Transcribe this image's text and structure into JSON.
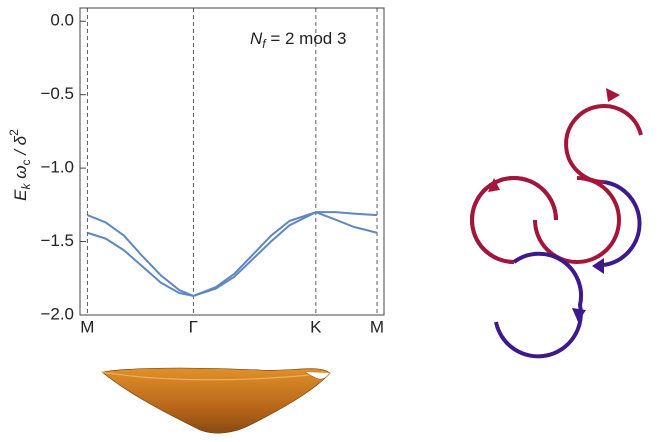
{
  "chart_data": {
    "type": "line",
    "ylabel": [
      "E",
      "k",
      " ω",
      "c",
      " / δ",
      "2"
    ],
    "annotation": [
      "N",
      "f",
      " = 2 mod 3"
    ],
    "x": [
      0,
      0.1,
      0.2,
      0.3,
      0.4,
      0.5,
      0.577,
      0.7,
      0.8,
      0.9,
      1.0,
      1.1,
      1.244,
      1.35,
      1.45,
      1.577
    ],
    "series": [
      {
        "color": "#5e87c3",
        "values": [
          -1.32,
          -1.37,
          -1.46,
          -1.6,
          -1.73,
          -1.83,
          -1.87,
          -1.82,
          -1.74,
          -1.62,
          -1.5,
          -1.39,
          -1.3,
          -1.3,
          -1.31,
          -1.32
        ]
      },
      {
        "color": "#5e87c3",
        "values": [
          -1.44,
          -1.48,
          -1.56,
          -1.67,
          -1.78,
          -1.85,
          -1.87,
          -1.81,
          -1.72,
          -1.59,
          -1.46,
          -1.36,
          -1.3,
          -1.35,
          -1.4,
          -1.44
        ]
      }
    ],
    "xlim": [
      -0.04,
      1.615
    ],
    "ylim": [
      -2.0,
      0.09
    ],
    "xticks": [
      {
        "value": 0,
        "label": "M"
      },
      {
        "value": 0.577,
        "label": "Γ"
      },
      {
        "value": 1.244,
        "label": "K"
      },
      {
        "value": 1.577,
        "label": "M"
      }
    ],
    "yticks": [
      {
        "value": -2.0,
        "label": "−2.0"
      },
      {
        "value": -1.5,
        "label": "−1.5"
      },
      {
        "value": -1.0,
        "label": "−1.0"
      },
      {
        "value": -0.5,
        "label": "−0.5"
      },
      {
        "value": 0.0,
        "label": "0.0"
      }
    ]
  }
}
